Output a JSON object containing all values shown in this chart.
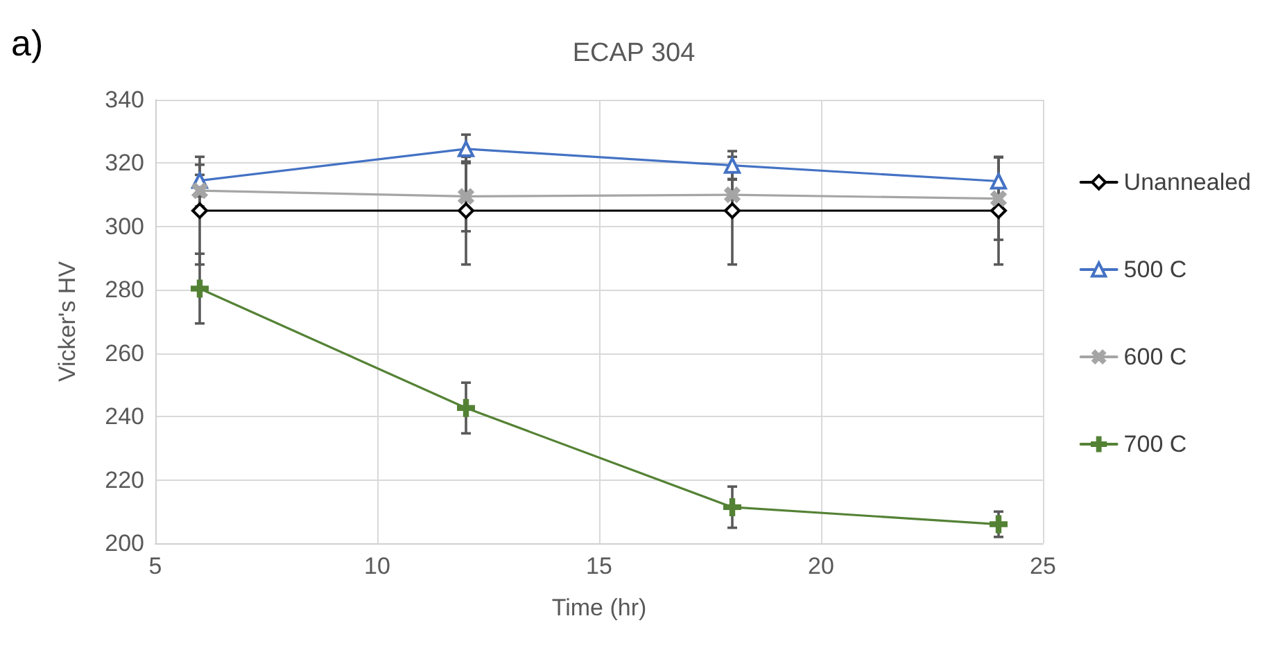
{
  "chart_data": {
    "type": "line",
    "title": "ECAP 304",
    "xlabel": "Time (hr)",
    "ylabel": "Vicker's HV",
    "annotations": [
      "a)"
    ],
    "x": [
      6,
      12,
      18,
      24
    ],
    "series": [
      {
        "name": "Unannealed",
        "color": "#000000",
        "marker": "diamond",
        "values": [
          305,
          305,
          305,
          305
        ],
        "errors": [
          17,
          17,
          17,
          17
        ]
      },
      {
        "name": "500 C",
        "color": "#4472c4",
        "marker": "triangle",
        "values": [
          314.5,
          324.5,
          319.3,
          314.3
        ],
        "errors": [
          5,
          4.5,
          4.5,
          7.5
        ]
      },
      {
        "name": "600 C",
        "color": "#a5a5a5",
        "marker": "cross",
        "values": [
          311.3,
          309.5,
          310,
          308.8
        ],
        "errors": [
          5,
          11,
          5,
          13
        ]
      },
      {
        "name": "700 C",
        "color": "#548235",
        "marker": "plus",
        "values": [
          280.4,
          242.7,
          211.4,
          206
        ],
        "errors": [
          11,
          8,
          6.5,
          4
        ]
      }
    ],
    "xlim": [
      5,
      25
    ],
    "xticks": [
      5,
      10,
      15,
      20,
      25
    ],
    "ylim": [
      200,
      340
    ],
    "yticks": [
      200,
      220,
      240,
      260,
      280,
      300,
      320,
      340
    ],
    "grid": true,
    "legend": "right"
  }
}
